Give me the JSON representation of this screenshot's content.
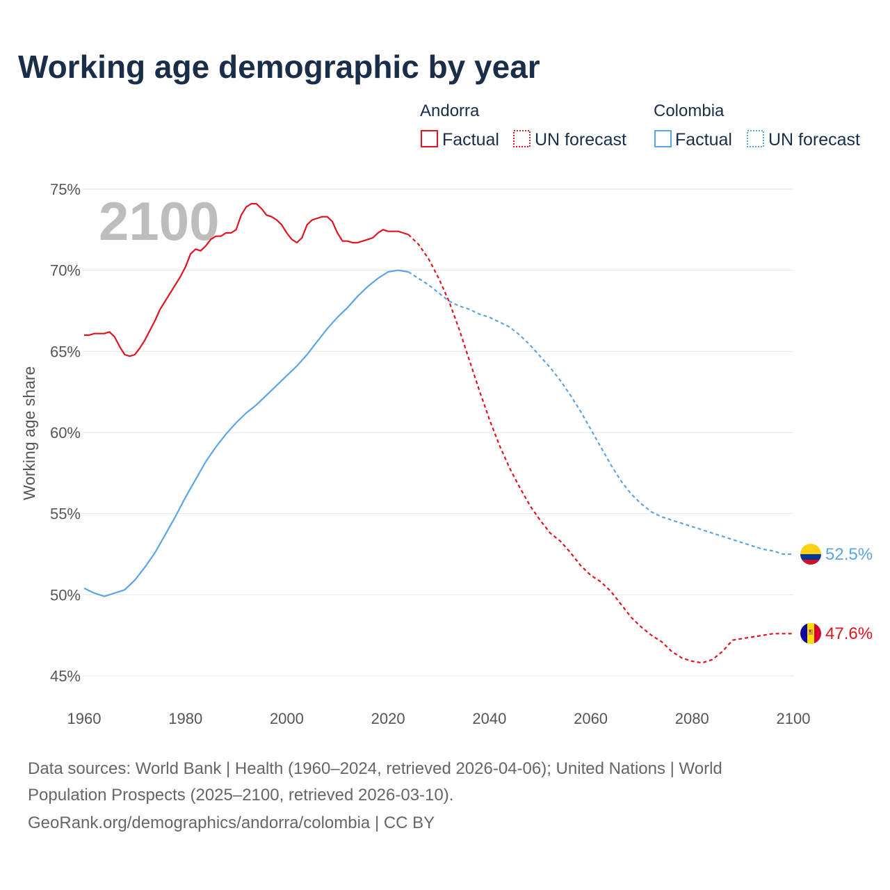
{
  "title": "Working age demographic by year",
  "year_overlay": "2100",
  "legend": {
    "groups": [
      {
        "name": "Andorra",
        "factual_label": "Factual",
        "forecast_label": "UN forecast",
        "color": "#e0141e"
      },
      {
        "name": "Colombia",
        "factual_label": "Factual",
        "forecast_label": "UN forecast",
        "color": "#5ba4e5"
      }
    ]
  },
  "source": {
    "line1": "Data sources: World Bank | Health (1960–2024, retrieved 2026-04-06); United Nations | World",
    "line2": "Population Prospects (2025–2100, retrieved 2026-03-10).",
    "line3": "GeoRank.org/demographics/andorra/colombia | CC BY"
  },
  "chart_data": {
    "type": "line",
    "title": "Working age demographic by year",
    "xlabel": "",
    "ylabel": "Working age share",
    "xlim": [
      1960,
      2100
    ],
    "ylim": [
      45,
      75
    ],
    "x_ticks": [
      "1960",
      "1980",
      "2000",
      "2020",
      "2040",
      "2060",
      "2080",
      "2100"
    ],
    "x_tick_values": [
      1960,
      1980,
      2000,
      2020,
      2040,
      2060,
      2080,
      2100
    ],
    "y_ticks": [
      "75%",
      "70%",
      "65%",
      "60%",
      "55%",
      "50%",
      "45%"
    ],
    "y_tick_values": [
      75,
      70,
      65,
      60,
      55,
      50,
      45
    ],
    "grid": true,
    "forecast_start": 2024,
    "series": [
      {
        "name": "Andorra",
        "color": "#e0141e",
        "end_label": "47.6%",
        "x": [
          1960,
          1961,
          1962,
          1963,
          1964,
          1965,
          1966,
          1967,
          1968,
          1969,
          1970,
          1971,
          1972,
          1973,
          1974,
          1975,
          1976,
          1977,
          1978,
          1979,
          1980,
          1981,
          1982,
          1983,
          1984,
          1985,
          1986,
          1987,
          1988,
          1989,
          1990,
          1991,
          1992,
          1993,
          1994,
          1995,
          1996,
          1997,
          1998,
          1999,
          2000,
          2001,
          2002,
          2003,
          2004,
          2005,
          2006,
          2007,
          2008,
          2009,
          2010,
          2011,
          2012,
          2013,
          2014,
          2015,
          2016,
          2017,
          2018,
          2019,
          2020,
          2021,
          2022,
          2023,
          2024,
          2026,
          2028,
          2030,
          2032,
          2034,
          2036,
          2038,
          2040,
          2042,
          2044,
          2046,
          2048,
          2050,
          2052,
          2054,
          2056,
          2058,
          2060,
          2062,
          2064,
          2066,
          2068,
          2070,
          2072,
          2074,
          2076,
          2078,
          2080,
          2082,
          2084,
          2086,
          2088,
          2090,
          2092,
          2094,
          2096,
          2098,
          2100
        ],
        "y": [
          66.0,
          66.0,
          66.1,
          66.1,
          66.1,
          66.2,
          65.9,
          65.3,
          64.8,
          64.7,
          64.8,
          65.2,
          65.7,
          66.3,
          66.9,
          67.6,
          68.1,
          68.6,
          69.1,
          69.6,
          70.2,
          71.0,
          71.3,
          71.2,
          71.5,
          71.9,
          72.1,
          72.1,
          72.3,
          72.3,
          72.5,
          73.4,
          73.9,
          74.1,
          74.1,
          73.8,
          73.4,
          73.3,
          73.1,
          72.8,
          72.3,
          71.9,
          71.7,
          72.0,
          72.8,
          73.1,
          73.2,
          73.3,
          73.3,
          73.0,
          72.3,
          71.8,
          71.8,
          71.7,
          71.7,
          71.8,
          71.9,
          72.0,
          72.3,
          72.5,
          72.4,
          72.4,
          72.4,
          72.3,
          72.2,
          71.6,
          70.7,
          69.5,
          68.1,
          66.4,
          64.5,
          62.6,
          60.8,
          59.2,
          57.8,
          56.6,
          55.5,
          54.6,
          53.8,
          53.3,
          52.6,
          51.8,
          51.2,
          50.8,
          50.2,
          49.4,
          48.6,
          48.0,
          47.5,
          47.1,
          46.5,
          46.1,
          45.9,
          45.8,
          46.0,
          46.5,
          47.2,
          47.3,
          47.4,
          47.5,
          47.6,
          47.6,
          47.6
        ]
      },
      {
        "name": "Colombia",
        "color": "#5ba4e5",
        "end_label": "52.5%",
        "x": [
          1960,
          1962,
          1964,
          1966,
          1968,
          1970,
          1972,
          1974,
          1976,
          1978,
          1980,
          1982,
          1984,
          1986,
          1988,
          1990,
          1992,
          1994,
          1996,
          1998,
          2000,
          2002,
          2004,
          2006,
          2008,
          2010,
          2012,
          2014,
          2016,
          2018,
          2020,
          2022,
          2024,
          2026,
          2028,
          2030,
          2032,
          2034,
          2036,
          2038,
          2040,
          2042,
          2044,
          2046,
          2048,
          2050,
          2052,
          2054,
          2056,
          2058,
          2060,
          2062,
          2064,
          2066,
          2068,
          2070,
          2072,
          2074,
          2076,
          2078,
          2080,
          2082,
          2084,
          2086,
          2088,
          2090,
          2092,
          2094,
          2096,
          2098,
          2100
        ],
        "y": [
          50.4,
          50.1,
          49.9,
          50.1,
          50.3,
          50.9,
          51.7,
          52.6,
          53.7,
          54.8,
          56.0,
          57.1,
          58.2,
          59.1,
          59.9,
          60.6,
          61.2,
          61.7,
          62.3,
          62.9,
          63.5,
          64.1,
          64.8,
          65.6,
          66.4,
          67.1,
          67.7,
          68.4,
          69.0,
          69.5,
          69.9,
          70.0,
          69.9,
          69.5,
          69.1,
          68.6,
          68.1,
          67.8,
          67.6,
          67.3,
          67.1,
          66.8,
          66.5,
          66.0,
          65.4,
          64.7,
          64.0,
          63.2,
          62.3,
          61.3,
          60.2,
          59.1,
          58.0,
          57.0,
          56.2,
          55.6,
          55.1,
          54.8,
          54.6,
          54.4,
          54.2,
          54.0,
          53.8,
          53.6,
          53.4,
          53.2,
          53.0,
          52.8,
          52.7,
          52.5,
          52.5
        ]
      }
    ]
  }
}
